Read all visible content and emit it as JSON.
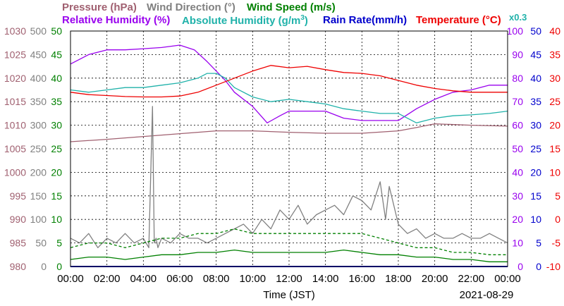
{
  "header": {
    "pressure": "Pressure (hPa)",
    "wind_direction": "Wind Direction (°)",
    "wind_speed": "Wind Speed (m/s)",
    "relative_humidity": "Relative Humidity (%)",
    "absolute_humidity_prefix": "Absolute Humidity (g/m",
    "absolute_humidity_sup": "3",
    "absolute_humidity_suffix": ")",
    "rain_rate": "Rain Rate(mm/h)",
    "temperature": "Temperature (°C)",
    "rain_factor": "x0.3"
  },
  "colors": {
    "pressure": "#a06070",
    "wind_direction": "#808080",
    "wind_speed": "#008000",
    "relative_humidity": "#9900ee",
    "absolute_humidity": "#20b2aa",
    "rain_rate": "#0000cc",
    "temperature": "#ee0000"
  },
  "chart_data": {
    "type": "line",
    "xlabel": "Time (JST)",
    "date": "2021-08-29",
    "x_ticks": [
      "00:00",
      "02:00",
      "04:00",
      "06:00",
      "08:00",
      "10:00",
      "12:00",
      "14:00",
      "16:00",
      "18:00",
      "20:00",
      "22:00",
      "00:00"
    ],
    "x_range_hours": [
      0,
      24
    ],
    "grid": true,
    "axes": [
      {
        "name": "pressure",
        "side": "left",
        "range": [
          980,
          1030
        ],
        "ticks": [
          "980",
          "985",
          "990",
          "995",
          "1000",
          "1005",
          "1010",
          "1015",
          "1020",
          "1025",
          "1030"
        ]
      },
      {
        "name": "wind_direction",
        "side": "left",
        "range": [
          0,
          500
        ],
        "ticks": [
          "0",
          "50",
          "100",
          "150",
          "200",
          "250",
          "300",
          "350",
          "400",
          "450",
          "500"
        ]
      },
      {
        "name": "wind_speed",
        "side": "left",
        "range": [
          0,
          50
        ],
        "ticks": [
          "0",
          "5",
          "10",
          "15",
          "20",
          "25",
          "30",
          "35",
          "40",
          "45",
          "50"
        ]
      },
      {
        "name": "relative_humidity",
        "side": "right",
        "range": [
          0,
          100
        ],
        "ticks": [
          "0",
          "10",
          "20",
          "30",
          "40",
          "50",
          "60",
          "70",
          "80",
          "90",
          "100"
        ]
      },
      {
        "name": "rain_rate",
        "side": "right",
        "range": [
          0,
          50
        ],
        "ticks": [
          "0",
          "5",
          "10",
          "15",
          "20",
          "25",
          "30",
          "35",
          "40",
          "45",
          "50"
        ]
      },
      {
        "name": "temperature",
        "side": "right",
        "range": [
          -10,
          40
        ],
        "ticks": [
          "-10",
          "-5",
          "0",
          "5",
          "10",
          "15",
          "20",
          "25",
          "30",
          "35",
          "40"
        ]
      }
    ],
    "series": [
      {
        "name": "Pressure (hPa)",
        "key": "pressure",
        "axis": "pressure",
        "x": [
          0,
          2,
          4,
          6,
          8,
          10,
          12,
          14,
          16,
          18,
          19,
          20,
          22,
          24
        ],
        "y": [
          1006.5,
          1007,
          1007.6,
          1008.2,
          1008.8,
          1008.8,
          1008.5,
          1008.3,
          1008.3,
          1008.8,
          1009.5,
          1010.3,
          1010,
          1009.8
        ]
      },
      {
        "name": "Relative Humidity (%)",
        "key": "relative_humidity",
        "axis": "relative_humidity",
        "x": [
          0,
          1,
          2,
          3,
          4,
          5,
          6,
          6.8,
          7.5,
          8.5,
          9,
          10,
          10.8,
          11.5,
          12,
          13,
          14,
          15,
          16,
          17,
          18,
          19,
          20,
          21,
          22,
          23,
          24
        ],
        "y": [
          86,
          90,
          92,
          92,
          92.5,
          93,
          94,
          92,
          87,
          79,
          74,
          68,
          61,
          64,
          66,
          66,
          66,
          63,
          62,
          62,
          62,
          67,
          71,
          74,
          75,
          77,
          77
        ]
      },
      {
        "name": "Absolute Humidity (g/m3)",
        "key": "absolute_humidity",
        "axis": "wind_speed",
        "x": [
          0,
          1,
          2,
          3,
          4,
          5,
          6,
          7,
          7.5,
          8,
          8.5,
          9,
          10,
          11,
          12,
          13,
          14,
          15,
          16,
          17,
          18,
          19,
          20,
          21,
          22,
          23,
          24
        ],
        "y": [
          37.5,
          37,
          37.5,
          38,
          38,
          38.5,
          39,
          40,
          41,
          41,
          40,
          38,
          36,
          35,
          35.5,
          35,
          34.5,
          33.5,
          33,
          32.5,
          32.5,
          30.5,
          31.5,
          32,
          32.2,
          32.5,
          33
        ]
      },
      {
        "name": "Temperature (°C)",
        "key": "temperature",
        "axis": "temperature",
        "x": [
          0,
          1,
          2,
          3,
          4,
          5,
          6,
          7,
          8,
          9,
          10,
          11,
          12,
          13,
          14,
          15,
          16,
          17,
          18,
          19,
          20,
          21,
          22,
          23,
          24
        ],
        "y": [
          27,
          26.5,
          26.3,
          26.1,
          26,
          26,
          26.2,
          27,
          28.5,
          30,
          31.5,
          32.7,
          32.2,
          32.5,
          31.8,
          31.2,
          31,
          30.5,
          29.5,
          28.5,
          27.8,
          27.3,
          27,
          27,
          27
        ]
      },
      {
        "name": "Wind Direction (°)",
        "key": "wind_direction",
        "axis": "wind_direction",
        "x": [
          0,
          0.5,
          1,
          1.5,
          2,
          2.5,
          3,
          3.5,
          4,
          4.3,
          4.5,
          4.6,
          4.7,
          4.8,
          5,
          5.5,
          6,
          6.5,
          7,
          7.5,
          8,
          8.5,
          9,
          9.5,
          10,
          10.5,
          11,
          11.5,
          12,
          12.5,
          13,
          13.5,
          14,
          14.5,
          15,
          15.5,
          16,
          16.5,
          17,
          17.3,
          17.5,
          18,
          18.5,
          19,
          19.5,
          20,
          20.5,
          21,
          21.5,
          22,
          22.5,
          23,
          23.5,
          24
        ],
        "y": [
          60,
          50,
          70,
          40,
          60,
          50,
          70,
          50,
          60,
          40,
          340,
          50,
          60,
          40,
          60,
          50,
          70,
          60,
          60,
          50,
          60,
          70,
          80,
          90,
          70,
          100,
          80,
          120,
          100,
          130,
          90,
          110,
          120,
          130,
          110,
          150,
          140,
          120,
          180,
          100,
          170,
          90,
          70,
          80,
          60,
          70,
          60,
          60,
          70,
          60,
          60,
          70,
          60,
          50
        ]
      },
      {
        "name": "Wind Speed (m/s)",
        "key": "wind_speed",
        "axis": "wind_speed",
        "x": [
          0,
          1,
          2,
          3,
          4,
          5,
          6,
          7,
          8,
          9,
          10,
          11,
          12,
          13,
          14,
          15,
          16,
          17,
          18,
          19,
          20,
          21,
          22,
          23,
          24
        ],
        "y": [
          1.5,
          2,
          2,
          1.5,
          2,
          2.5,
          2.5,
          3,
          3,
          3.5,
          3,
          3,
          3,
          3,
          3,
          3.5,
          3,
          2.5,
          2.5,
          2,
          2,
          1.5,
          1.5,
          1,
          1
        ]
      },
      {
        "name": "Wind Speed gust (m/s)",
        "key": "wind_speed",
        "axis": "wind_speed",
        "dashed": true,
        "x": [
          0,
          1,
          2,
          3,
          4,
          5,
          6,
          7,
          8,
          9,
          10,
          11,
          12,
          13,
          14,
          15,
          16,
          17,
          18,
          19,
          20,
          21,
          22,
          23,
          24
        ],
        "y": [
          4,
          5,
          5,
          4,
          5,
          6,
          6,
          7,
          7,
          8,
          7,
          7,
          7,
          7,
          7,
          7,
          7,
          6,
          5,
          4,
          4,
          3,
          3,
          2.5,
          2.5
        ]
      },
      {
        "name": "Rain Rate(mm/h)",
        "key": "rain_rate",
        "axis": "rain_rate",
        "x": [
          0,
          24
        ],
        "y": [
          0,
          0
        ]
      }
    ]
  }
}
